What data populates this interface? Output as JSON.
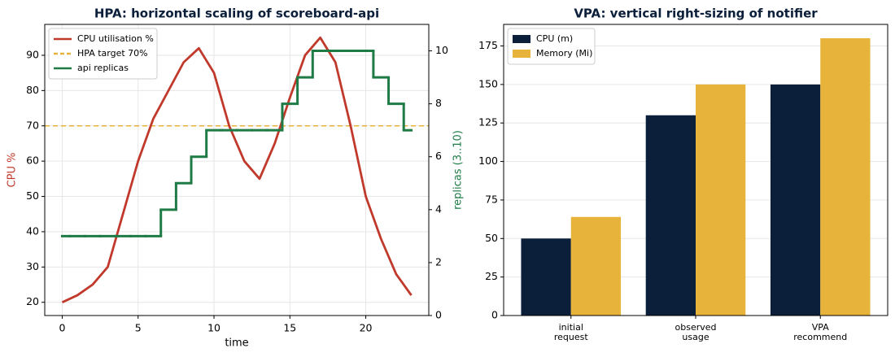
{
  "chart_data": [
    {
      "type": "line",
      "title": "HPA: horizontal scaling of scoreboard-api",
      "x_label": "time",
      "y_label": "CPU %",
      "y2_label": "replicas (3..10)",
      "x": [
        0,
        1,
        2,
        3,
        4,
        5,
        6,
        7,
        8,
        9,
        10,
        11,
        12,
        13,
        14,
        15,
        16,
        17,
        18,
        19,
        20,
        21,
        22,
        23
      ],
      "series": [
        {
          "name": "CPU utilisation %",
          "color": "#c0392b",
          "values": [
            20,
            22,
            25,
            30,
            45,
            60,
            72,
            80,
            88,
            92,
            85,
            70,
            60,
            55,
            65,
            78,
            90,
            95,
            88,
            70,
            50,
            38,
            28,
            22
          ]
        },
        {
          "name": "api replicas",
          "color": "#1e7b45",
          "axis": "y2",
          "step": "mid",
          "values": [
            3,
            3,
            3,
            3,
            3,
            3,
            3,
            4,
            5,
            6,
            7,
            7,
            7,
            7,
            7,
            8,
            9,
            10,
            10,
            10,
            10,
            9,
            8,
            7
          ]
        }
      ],
      "reference_lines": [
        {
          "name": "HPA target 70%",
          "value": 70,
          "color": "#e8b33a",
          "style": "dashed"
        }
      ],
      "xlim": [
        -1.15,
        24.15
      ],
      "xticks": [
        0,
        5,
        10,
        15,
        20
      ],
      "ylim": [
        16.25,
        98.75
      ],
      "yticks": [
        20,
        30,
        40,
        50,
        60,
        70,
        80,
        90
      ],
      "y2lim": [
        0,
        11
      ],
      "y2ticks": [
        0,
        2,
        4,
        6,
        8,
        10
      ],
      "grid": true,
      "legend": "upper left"
    },
    {
      "type": "bar",
      "title": "VPA: vertical right-sizing of notifier",
      "categories": [
        "initial\nrequest",
        "observed\nusage",
        "VPA\nrecommend"
      ],
      "series": [
        {
          "name": "CPU (m)",
          "color": "#0b1f3a",
          "values": [
            50,
            130,
            150
          ]
        },
        {
          "name": "Memory (Mi)",
          "color": "#e8b33a",
          "values": [
            64,
            150,
            180
          ]
        }
      ],
      "ylim": [
        0,
        189
      ],
      "yticks": [
        0,
        25,
        50,
        75,
        100,
        125,
        150,
        175
      ],
      "grid": true,
      "legend": "upper left"
    }
  ]
}
